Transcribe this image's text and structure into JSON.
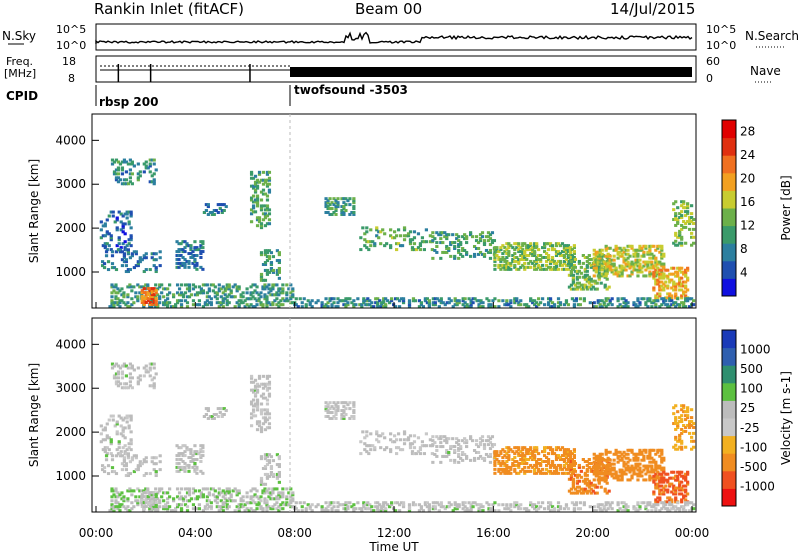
{
  "header": {
    "title": "Rankin Inlet (fitACF)",
    "beam": "Beam 00",
    "date": "14/Jul/2015"
  },
  "params": {
    "nsky_label": "N.Sky",
    "nsearch_label": "N.Search",
    "freq_label_1": "Freq.",
    "freq_label_2": "[MHz]",
    "nave_label": "Nave",
    "cpid_label": "CPID",
    "nsky_ticks": [
      "10^5",
      "10^0"
    ],
    "nsearch_ticks": [
      "10^5",
      "10^0"
    ],
    "freq_ticks": [
      "18",
      "8"
    ],
    "nave_ticks": [
      "60",
      "0"
    ],
    "cpid_segments": [
      {
        "name": "rbsp 200",
        "start_hour": 0.0
      },
      {
        "name": "twofsound -3503",
        "start_hour": 8.0
      }
    ]
  },
  "colors": {
    "power": [
      "#1010e0",
      "#1f4fb0",
      "#2c7f9f",
      "#3a9a6a",
      "#6cb04a",
      "#c8cc30",
      "#f2a020",
      "#f07020",
      "#e03010",
      "#e00000"
    ],
    "velocity": [
      "#ee1111",
      "#f05020",
      "#f08c20",
      "#f2b020",
      "#c8c8c8",
      "#bcbcbc",
      "#5cc040",
      "#2f8f6f",
      "#2f5faf",
      "#1a3ab8"
    ]
  },
  "chart_data": {
    "type": "heatmap",
    "xlabel": "Time UT",
    "x_ticks": [
      "00:00",
      "04:00",
      "08:00",
      "12:00",
      "16:00",
      "20:00",
      "00:00"
    ],
    "xlim_hours": [
      0,
      24
    ],
    "panels": [
      {
        "name": "power",
        "ylabel": "Slant Range [km]",
        "ylim": [
          180,
          4600
        ],
        "y_ticks": [
          1000,
          2000,
          3000,
          4000
        ],
        "colorbar_label": "Power [dB]",
        "colorbar_ticks": [
          "4",
          "8",
          "12",
          "16",
          "20",
          "24",
          "28"
        ],
        "colorbar_range": [
          0,
          30
        ]
      },
      {
        "name": "velocity",
        "ylabel": "Slant Range [km]",
        "ylim": [
          180,
          4600
        ],
        "y_ticks": [
          1000,
          2000,
          3000,
          4000
        ],
        "colorbar_label": "Velocity [m s-1]",
        "colorbar_ticks": [
          "1000",
          "500",
          "100",
          "25",
          "-25",
          "-100",
          "-500",
          "-1000"
        ]
      }
    ],
    "scatter_regions": [
      {
        "t0": 0.15,
        "t1": 1.4,
        "r0": 1500,
        "r1": 2400,
        "density": 0.25,
        "power": 6,
        "vel": 8
      },
      {
        "t0": 0.2,
        "t1": 2.6,
        "r0": 1000,
        "r1": 1500,
        "density": 0.2,
        "power": 7,
        "vel": 8
      },
      {
        "t0": 0.6,
        "t1": 2.4,
        "r0": 3000,
        "r1": 3550,
        "density": 0.2,
        "power": 9,
        "vel": 8
      },
      {
        "t0": 3.2,
        "t1": 4.3,
        "r0": 1050,
        "r1": 1700,
        "density": 0.3,
        "power": 7,
        "vel": 8
      },
      {
        "t0": 4.3,
        "t1": 5.2,
        "r0": 2300,
        "r1": 2550,
        "density": 0.35,
        "power": 8,
        "vel": 8
      },
      {
        "t0": 6.2,
        "t1": 7.0,
        "r0": 2000,
        "r1": 3300,
        "density": 0.3,
        "power": 11,
        "vel": 4
      },
      {
        "t0": 6.6,
        "t1": 7.4,
        "r0": 800,
        "r1": 1500,
        "density": 0.3,
        "power": 10,
        "vel": 8
      },
      {
        "t0": 9.2,
        "t1": 10.4,
        "r0": 2300,
        "r1": 2700,
        "density": 0.3,
        "power": 10,
        "vel": 4
      },
      {
        "t0": 10.6,
        "t1": 13.5,
        "r0": 1500,
        "r1": 2000,
        "density": 0.18,
        "power": 12,
        "vel": 4
      },
      {
        "t0": 13.5,
        "t1": 16.0,
        "r0": 1300,
        "r1": 1900,
        "density": 0.22,
        "power": 11,
        "vel": 4
      },
      {
        "t0": 16.0,
        "t1": 19.2,
        "r0": 1050,
        "r1": 1650,
        "density": 0.45,
        "power": 14,
        "vel": -150
      },
      {
        "t0": 19.0,
        "t1": 20.6,
        "r0": 600,
        "r1": 1400,
        "density": 0.35,
        "power": 13,
        "vel": -400
      },
      {
        "t0": 20.0,
        "t1": 22.8,
        "r0": 900,
        "r1": 1600,
        "density": 0.45,
        "power": 16,
        "vel": -300
      },
      {
        "t0": 22.4,
        "t1": 23.8,
        "r0": 400,
        "r1": 1100,
        "density": 0.4,
        "power": 19,
        "vel": -600
      },
      {
        "t0": 23.2,
        "t1": 24.0,
        "r0": 1600,
        "r1": 2600,
        "density": 0.3,
        "power": 14,
        "vel": -80
      },
      {
        "t0": 0.5,
        "t1": 8.0,
        "r0": 200,
        "r1": 700,
        "density": 0.3,
        "power": 10,
        "vel": 20
      },
      {
        "t0": 8.0,
        "t1": 24.0,
        "r0": 200,
        "r1": 400,
        "density": 0.35,
        "power": 9,
        "vel": 10
      },
      {
        "t0": 1.8,
        "t1": 2.4,
        "r0": 250,
        "r1": 650,
        "density": 0.6,
        "power": 22,
        "vel": 8
      }
    ]
  }
}
